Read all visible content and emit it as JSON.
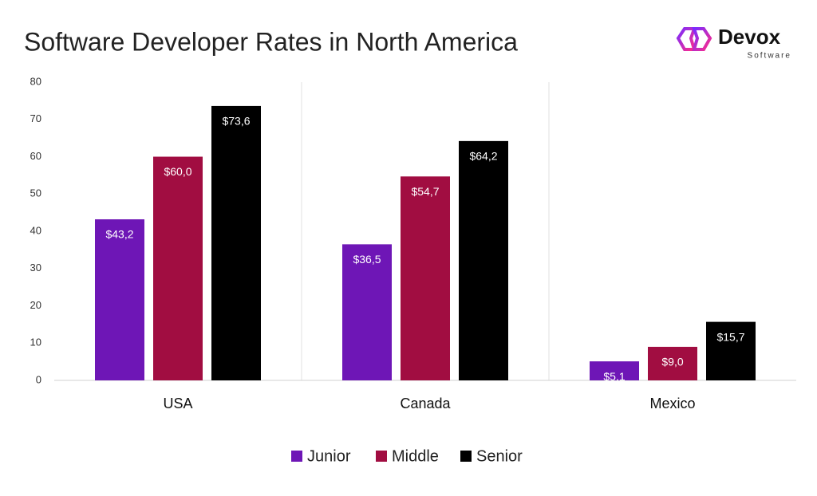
{
  "chart_data": {
    "type": "bar",
    "title": "Software Developer Rates in North America",
    "categories": [
      "USA",
      "Canada",
      "Mexico"
    ],
    "series": [
      {
        "name": "Junior",
        "color": "#6e16b6",
        "values": [
          43.2,
          36.5,
          5.1
        ],
        "value_labels": [
          "$43,2",
          "$36,5",
          "$5,1"
        ]
      },
      {
        "name": "Middle",
        "color": "#a10d41",
        "values": [
          60.0,
          54.7,
          9.0
        ],
        "value_labels": [
          "$60,0",
          "$54,7",
          "$9,0"
        ]
      },
      {
        "name": "Senior",
        "color": "#000000",
        "values": [
          73.6,
          64.2,
          15.7
        ],
        "value_labels": [
          "$73,6",
          "$64,2",
          "$15,7"
        ]
      }
    ],
    "ylim": [
      0,
      80
    ],
    "yticks": [
      0,
      10,
      20,
      30,
      40,
      50,
      60,
      70,
      80
    ],
    "grid": false,
    "legend": "bottom"
  },
  "logo": {
    "name": "Devox",
    "tagline": "Software"
  }
}
